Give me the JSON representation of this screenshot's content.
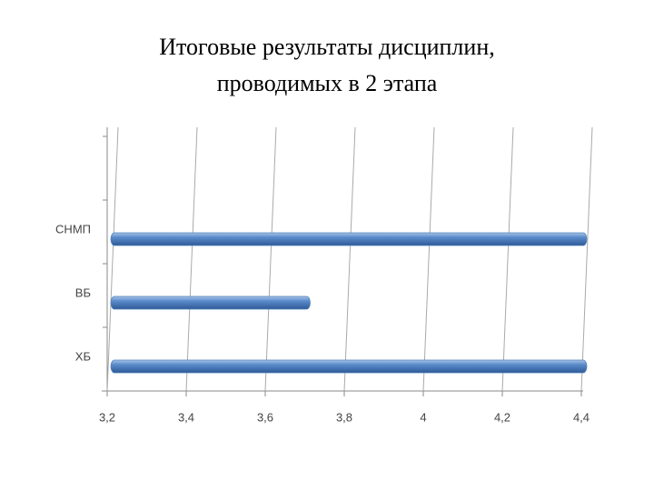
{
  "chart_data": {
    "type": "bar",
    "orientation": "horizontal",
    "title": "Итоговые результаты дисциплин, проводимых в 2 этапа",
    "categories": [
      null,
      "СНМП",
      "ВБ",
      "ХБ"
    ],
    "values": [
      null,
      4.4,
      3.7,
      4.4
    ],
    "color": "#4f81bd",
    "xlim": [
      3.2,
      4.4
    ],
    "xticks": [
      {
        "value": 3.2,
        "label": "3,2"
      },
      {
        "value": 3.4,
        "label": "3,4"
      },
      {
        "value": 3.6,
        "label": "3,6"
      },
      {
        "value": 3.8,
        "label": "3,8"
      },
      4,
      {
        "value": 4.2,
        "label": "4,2"
      },
      {
        "value": 4.4,
        "label": "4,4"
      }
    ],
    "grid": true
  }
}
